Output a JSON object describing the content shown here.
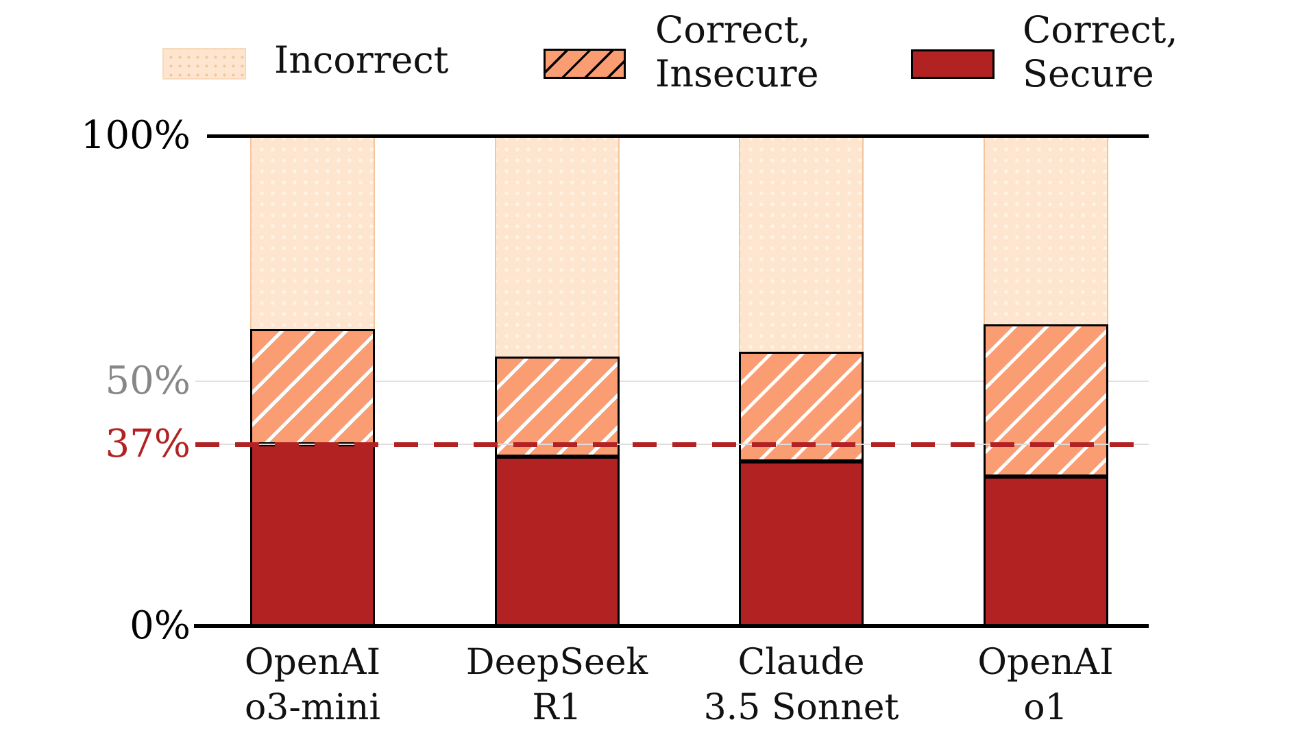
{
  "chart_data": {
    "type": "bar",
    "stacked": true,
    "title": "",
    "categories": [
      "OpenAI o3-mini",
      "DeepSeek R1",
      "Claude 3.5 Sonnet",
      "OpenAI o1"
    ],
    "xtick_labels": [
      "OpenAI\no3-mini",
      "DeepSeek\nR1",
      "Claude\n3.5 Sonnet",
      "OpenAI\no1"
    ],
    "series": [
      {
        "name": "Correct, Secure",
        "pattern": "solid",
        "color": "#b22222",
        "values": [
          37,
          34.5,
          33.5,
          30.5
        ]
      },
      {
        "name": "Correct, Insecure",
        "pattern": "diagonal-hatch",
        "color": "#fb9d72",
        "values": [
          23.5,
          20.5,
          22.5,
          31
        ]
      },
      {
        "name": "Incorrect",
        "pattern": "dots",
        "color": "#fde5cf",
        "values": [
          39.5,
          45,
          44,
          38.5
        ]
      }
    ],
    "ylim": [
      0,
      100
    ],
    "yticks": [
      {
        "label": "100%",
        "value": 100,
        "color": "#000000"
      },
      {
        "label": "50%",
        "value": 50,
        "color": "#878787"
      },
      {
        "label": "37%",
        "value": 37,
        "color": "#b22222"
      },
      {
        "label": "0%",
        "value": 0,
        "color": "#000000"
      }
    ],
    "gridlines_y": [
      50
    ],
    "annotation_line": {
      "label": "37%",
      "value": 37,
      "style": "dashed",
      "color": "#b22222"
    },
    "legend_position": "top",
    "legend_order": [
      "Incorrect",
      "Correct, Insecure",
      "Correct, Secure"
    ]
  },
  "legend": {
    "items": [
      {
        "label": "Incorrect",
        "swatch": "dots"
      },
      {
        "label": "Correct,\nInsecure",
        "swatch": "diagonal-hatch"
      },
      {
        "label": "Correct,\nSecure",
        "swatch": "solid"
      }
    ]
  },
  "colors": {
    "secure": "#b22222",
    "insecure": "#fb9d72",
    "incorrect_fill": "#fde5cf",
    "incorrect_dot": "#fff3e4",
    "incorrect_edge": "#f5c49d",
    "legend_dot": "#f2c69c",
    "legend_dots_edge": "#f8d8ba",
    "hatch_white": "#ffffff",
    "annotation_red": "#b22222",
    "gridline": "#e2e2e2",
    "tick_gray": "#878787",
    "axis_black": "#000000"
  }
}
